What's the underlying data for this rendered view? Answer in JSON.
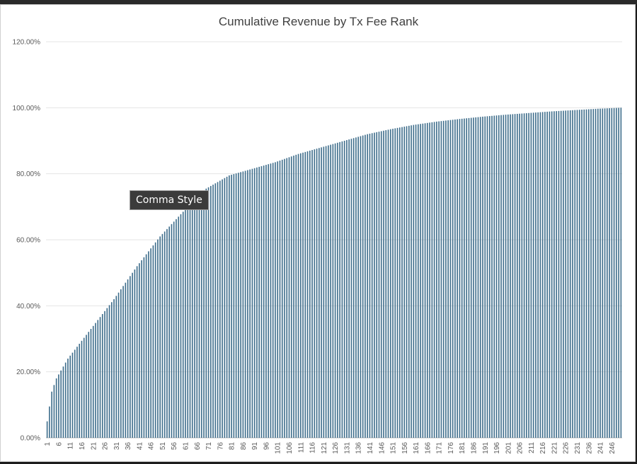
{
  "chart_data": {
    "type": "bar",
    "title": "Cumulative Revenue by Tx Fee Rank",
    "xlabel": "",
    "ylabel": "",
    "ylim": [
      0,
      1.2
    ],
    "yticks": [
      "0.00%",
      "20.00%",
      "40.00%",
      "60.00%",
      "80.00%",
      "100.00%",
      "120.00%"
    ],
    "categories_first": 1,
    "categories_last": 250,
    "xtick_step": 5,
    "grid": true,
    "legend": "none",
    "bar_color": "#3f6e8c",
    "sample_points": [
      {
        "x": 1,
        "y": 0.05
      },
      {
        "x": 2,
        "y": 0.095
      },
      {
        "x": 3,
        "y": 0.14
      },
      {
        "x": 5,
        "y": 0.18
      },
      {
        "x": 10,
        "y": 0.24
      },
      {
        "x": 20,
        "y": 0.33
      },
      {
        "x": 30,
        "y": 0.42
      },
      {
        "x": 40,
        "y": 0.52
      },
      {
        "x": 50,
        "y": 0.61
      },
      {
        "x": 60,
        "y": 0.685
      },
      {
        "x": 70,
        "y": 0.755
      },
      {
        "x": 80,
        "y": 0.795
      },
      {
        "x": 90,
        "y": 0.815
      },
      {
        "x": 100,
        "y": 0.835
      },
      {
        "x": 110,
        "y": 0.86
      },
      {
        "x": 120,
        "y": 0.88
      },
      {
        "x": 130,
        "y": 0.9
      },
      {
        "x": 140,
        "y": 0.92
      },
      {
        "x": 150,
        "y": 0.935
      },
      {
        "x": 160,
        "y": 0.948
      },
      {
        "x": 170,
        "y": 0.958
      },
      {
        "x": 180,
        "y": 0.966
      },
      {
        "x": 190,
        "y": 0.973
      },
      {
        "x": 200,
        "y": 0.979
      },
      {
        "x": 210,
        "y": 0.984
      },
      {
        "x": 220,
        "y": 0.989
      },
      {
        "x": 230,
        "y": 0.993
      },
      {
        "x": 240,
        "y": 0.997
      },
      {
        "x": 250,
        "y": 1.0
      }
    ]
  },
  "tooltip": {
    "label": "Comma Style"
  }
}
